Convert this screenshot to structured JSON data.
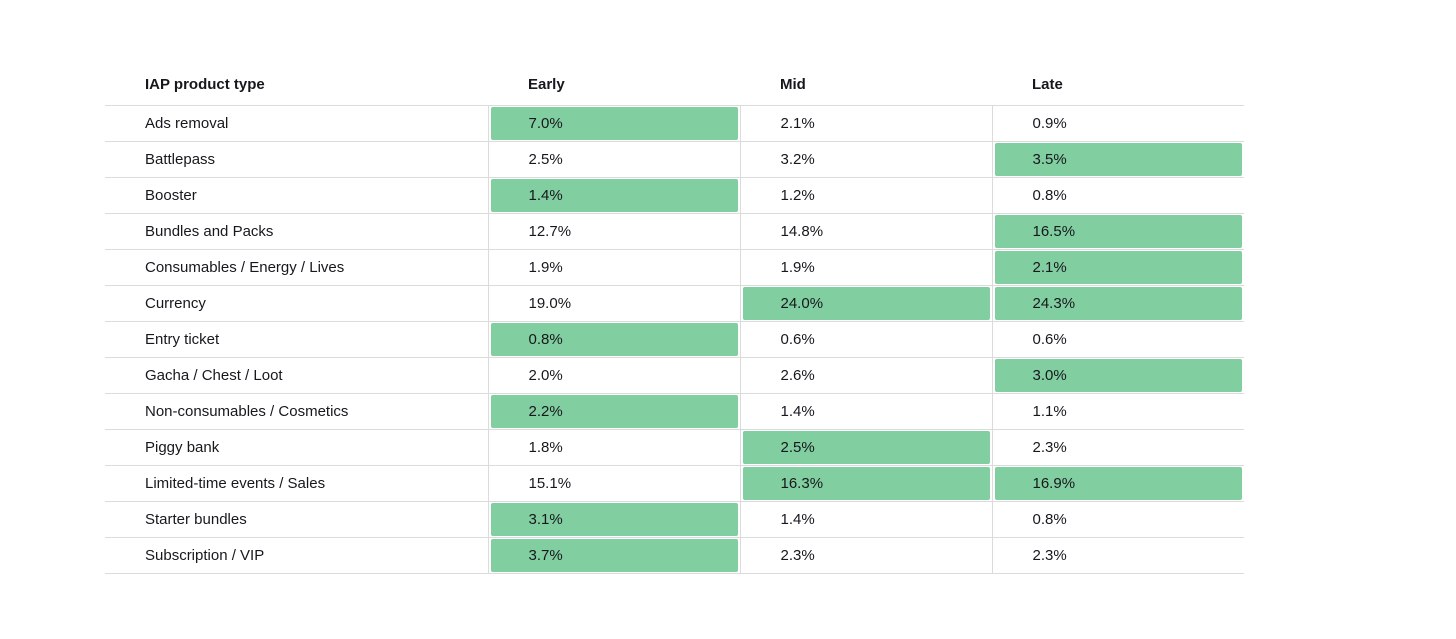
{
  "chart_data": {
    "type": "table",
    "columns": [
      "IAP product type",
      "Early",
      "Mid",
      "Late"
    ],
    "rows": [
      {
        "label": "Ads removal",
        "values": [
          "7.0%",
          "2.1%",
          "0.9%"
        ],
        "highlight": [
          true,
          false,
          false
        ]
      },
      {
        "label": "Battlepass",
        "values": [
          "2.5%",
          "3.2%",
          "3.5%"
        ],
        "highlight": [
          false,
          false,
          true
        ]
      },
      {
        "label": "Booster",
        "values": [
          "1.4%",
          "1.2%",
          "0.8%"
        ],
        "highlight": [
          true,
          false,
          false
        ]
      },
      {
        "label": "Bundles and Packs",
        "values": [
          "12.7%",
          "14.8%",
          "16.5%"
        ],
        "highlight": [
          false,
          false,
          true
        ]
      },
      {
        "label": "Consumables / Energy / Lives",
        "values": [
          "1.9%",
          "1.9%",
          "2.1%"
        ],
        "highlight": [
          false,
          false,
          true
        ]
      },
      {
        "label": "Currency",
        "values": [
          "19.0%",
          "24.0%",
          "24.3%"
        ],
        "highlight": [
          false,
          true,
          true
        ]
      },
      {
        "label": "Entry ticket",
        "values": [
          "0.8%",
          "0.6%",
          "0.6%"
        ],
        "highlight": [
          true,
          false,
          false
        ]
      },
      {
        "label": "Gacha / Chest / Loot",
        "values": [
          "2.0%",
          "2.6%",
          "3.0%"
        ],
        "highlight": [
          false,
          false,
          true
        ]
      },
      {
        "label": "Non-consumables / Cosmetics",
        "values": [
          "2.2%",
          "1.4%",
          "1.1%"
        ],
        "highlight": [
          true,
          false,
          false
        ]
      },
      {
        "label": "Piggy bank",
        "values": [
          "1.8%",
          "2.5%",
          "2.3%"
        ],
        "highlight": [
          false,
          true,
          false
        ]
      },
      {
        "label": "Limited-time events / Sales",
        "values": [
          "15.1%",
          "16.3%",
          "16.9%"
        ],
        "highlight": [
          false,
          true,
          true
        ]
      },
      {
        "label": "Starter bundles",
        "values": [
          "3.1%",
          "1.4%",
          "0.8%"
        ],
        "highlight": [
          true,
          false,
          false
        ]
      },
      {
        "label": "Subscription / VIP",
        "values": [
          "3.7%",
          "2.3%",
          "2.3%"
        ],
        "highlight": [
          true,
          false,
          false
        ]
      }
    ]
  },
  "colors": {
    "highlight_green": "#81cea0",
    "row_border": "#dbdbdb",
    "text": "#16181d",
    "background": "#ffffff"
  }
}
